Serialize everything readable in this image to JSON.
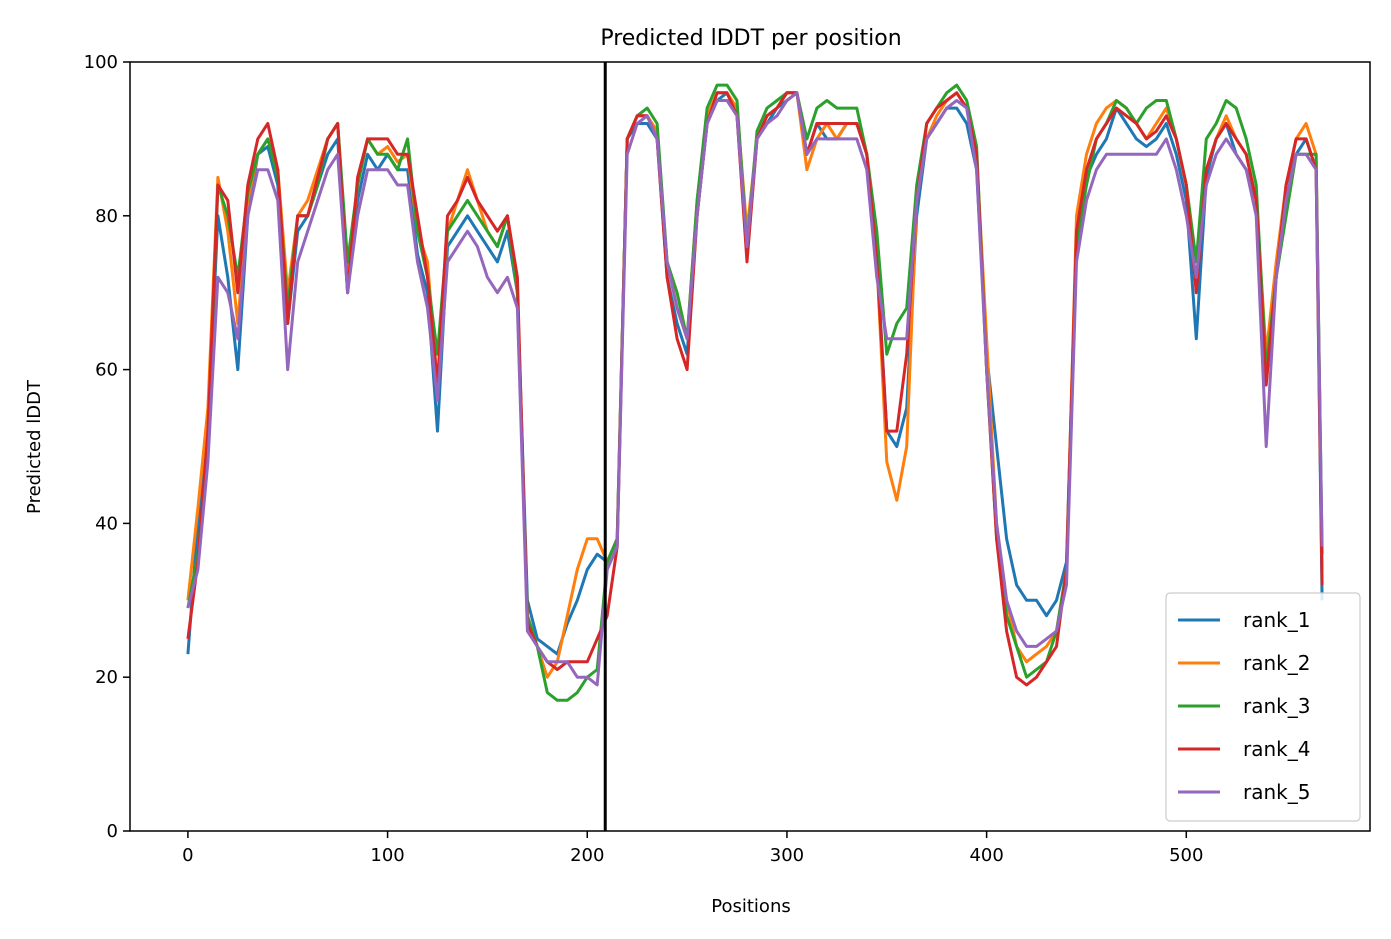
{
  "chart_data": {
    "type": "line",
    "title": "Predicted lDDT per position",
    "xlabel": "Positions",
    "ylabel": "Predicted lDDT",
    "xlim": [
      -29,
      592
    ],
    "ylim": [
      0,
      100
    ],
    "xticks": [
      0,
      100,
      200,
      300,
      400,
      500
    ],
    "yticks": [
      0,
      20,
      40,
      60,
      80,
      100
    ],
    "grid": false,
    "legend_position": "lower-right",
    "divider_x": 209,
    "x": [
      0,
      5,
      10,
      15,
      20,
      25,
      30,
      35,
      40,
      45,
      50,
      55,
      60,
      65,
      70,
      75,
      80,
      85,
      90,
      95,
      100,
      105,
      110,
      115,
      120,
      125,
      130,
      135,
      140,
      145,
      150,
      155,
      160,
      165,
      170,
      175,
      180,
      185,
      190,
      195,
      200,
      205,
      210,
      215,
      220,
      225,
      230,
      235,
      240,
      245,
      250,
      255,
      260,
      265,
      270,
      275,
      280,
      285,
      290,
      295,
      300,
      305,
      310,
      315,
      320,
      325,
      330,
      335,
      340,
      345,
      350,
      355,
      360,
      365,
      370,
      375,
      380,
      385,
      390,
      395,
      400,
      405,
      410,
      415,
      420,
      425,
      430,
      435,
      440,
      445,
      450,
      455,
      460,
      465,
      470,
      475,
      480,
      485,
      490,
      495,
      500,
      505,
      510,
      515,
      520,
      525,
      530,
      535,
      540,
      545,
      550,
      555,
      560,
      565,
      568
    ],
    "series": [
      {
        "name": "rank_1",
        "color": "#1f77b4",
        "values": [
          23,
          40,
          52,
          80,
          72,
          60,
          80,
          88,
          89,
          84,
          66,
          78,
          80,
          84,
          88,
          90,
          70,
          82,
          88,
          86,
          88,
          86,
          86,
          75,
          70,
          52,
          76,
          78,
          80,
          78,
          76,
          74,
          78,
          70,
          30,
          25,
          24,
          23,
          27,
          30,
          34,
          36,
          35,
          38,
          90,
          92,
          92,
          90,
          72,
          66,
          62,
          80,
          92,
          95,
          96,
          93,
          75,
          90,
          92,
          94,
          95,
          96,
          88,
          92,
          90,
          90,
          92,
          92,
          88,
          75,
          52,
          50,
          55,
          80,
          90,
          92,
          94,
          94,
          92,
          86,
          62,
          50,
          38,
          32,
          30,
          30,
          28,
          30,
          35,
          78,
          85,
          88,
          90,
          94,
          92,
          90,
          89,
          90,
          92,
          88,
          82,
          64,
          85,
          90,
          92,
          88,
          86,
          82,
          60,
          72,
          84,
          88,
          90,
          86,
          30
        ]
      },
      {
        "name": "rank_2",
        "color": "#ff7f0e",
        "values": [
          30,
          42,
          55,
          85,
          78,
          66,
          82,
          88,
          90,
          86,
          70,
          80,
          82,
          86,
          90,
          92,
          72,
          84,
          90,
          88,
          89,
          87,
          88,
          78,
          74,
          58,
          78,
          82,
          86,
          82,
          78,
          76,
          80,
          70,
          28,
          24,
          20,
          22,
          28,
          34,
          38,
          38,
          35,
          38,
          90,
          93,
          93,
          91,
          74,
          68,
          64,
          82,
          93,
          96,
          96,
          94,
          78,
          90,
          93,
          94,
          96,
          96,
          86,
          90,
          92,
          90,
          92,
          92,
          88,
          74,
          48,
          43,
          50,
          82,
          90,
          93,
          95,
          96,
          94,
          88,
          64,
          40,
          30,
          24,
          22,
          23,
          24,
          26,
          34,
          80,
          88,
          92,
          94,
          95,
          94,
          92,
          90,
          92,
          94,
          90,
          84,
          74,
          86,
          90,
          93,
          90,
          88,
          82,
          62,
          74,
          84,
          90,
          92,
          88,
          34
        ]
      },
      {
        "name": "rank_3",
        "color": "#2ca02c",
        "values": [
          29,
          36,
          50,
          84,
          80,
          72,
          83,
          88,
          90,
          85,
          68,
          80,
          80,
          84,
          90,
          92,
          74,
          84,
          90,
          88,
          88,
          86,
          90,
          78,
          72,
          62,
          78,
          80,
          82,
          80,
          78,
          76,
          80,
          70,
          28,
          24,
          18,
          17,
          17,
          18,
          20,
          21,
          35,
          38,
          90,
          93,
          94,
          92,
          74,
          70,
          64,
          82,
          94,
          97,
          97,
          95,
          76,
          91,
          94,
          95,
          96,
          96,
          90,
          94,
          95,
          94,
          94,
          94,
          88,
          78,
          62,
          66,
          68,
          84,
          92,
          94,
          96,
          97,
          95,
          89,
          60,
          38,
          28,
          24,
          20,
          21,
          22,
          26,
          34,
          76,
          84,
          90,
          92,
          95,
          94,
          92,
          94,
          95,
          95,
          90,
          84,
          74,
          90,
          92,
          95,
          94,
          90,
          84,
          60,
          72,
          80,
          88,
          88,
          88,
          36
        ]
      },
      {
        "name": "rank_4",
        "color": "#d62728",
        "values": [
          25,
          35,
          52,
          84,
          82,
          70,
          84,
          90,
          92,
          86,
          66,
          80,
          80,
          85,
          90,
          92,
          70,
          85,
          90,
          90,
          90,
          88,
          88,
          80,
          72,
          58,
          80,
          82,
          85,
          82,
          80,
          78,
          80,
          72,
          27,
          24,
          22,
          21,
          22,
          22,
          22,
          25,
          28,
          37,
          90,
          93,
          93,
          90,
          72,
          64,
          60,
          80,
          92,
          96,
          96,
          93,
          74,
          90,
          93,
          94,
          96,
          96,
          88,
          92,
          92,
          92,
          92,
          92,
          88,
          74,
          52,
          52,
          62,
          82,
          92,
          94,
          95,
          96,
          94,
          88,
          60,
          38,
          26,
          20,
          19,
          20,
          22,
          24,
          34,
          78,
          86,
          90,
          92,
          94,
          93,
          92,
          90,
          91,
          93,
          90,
          84,
          70,
          86,
          90,
          92,
          90,
          88,
          82,
          58,
          72,
          84,
          90,
          90,
          86,
          32
        ]
      },
      {
        "name": "rank_5",
        "color": "#9467bd",
        "values": [
          29,
          34,
          48,
          72,
          70,
          64,
          80,
          86,
          86,
          82,
          60,
          74,
          78,
          82,
          86,
          88,
          70,
          80,
          86,
          86,
          86,
          84,
          84,
          74,
          68,
          56,
          74,
          76,
          78,
          76,
          72,
          70,
          72,
          68,
          26,
          24,
          22,
          22,
          22,
          20,
          20,
          19,
          34,
          37,
          88,
          92,
          93,
          90,
          74,
          68,
          64,
          80,
          92,
          95,
          95,
          93,
          76,
          90,
          92,
          93,
          95,
          96,
          88,
          90,
          90,
          90,
          90,
          90,
          86,
          72,
          64,
          64,
          64,
          82,
          90,
          92,
          94,
          95,
          94,
          86,
          60,
          40,
          30,
          26,
          24,
          24,
          25,
          26,
          32,
          74,
          82,
          86,
          88,
          88,
          88,
          88,
          88,
          88,
          90,
          86,
          80,
          72,
          84,
          88,
          90,
          88,
          86,
          80,
          50,
          72,
          82,
          88,
          88,
          86,
          37
        ]
      }
    ]
  }
}
